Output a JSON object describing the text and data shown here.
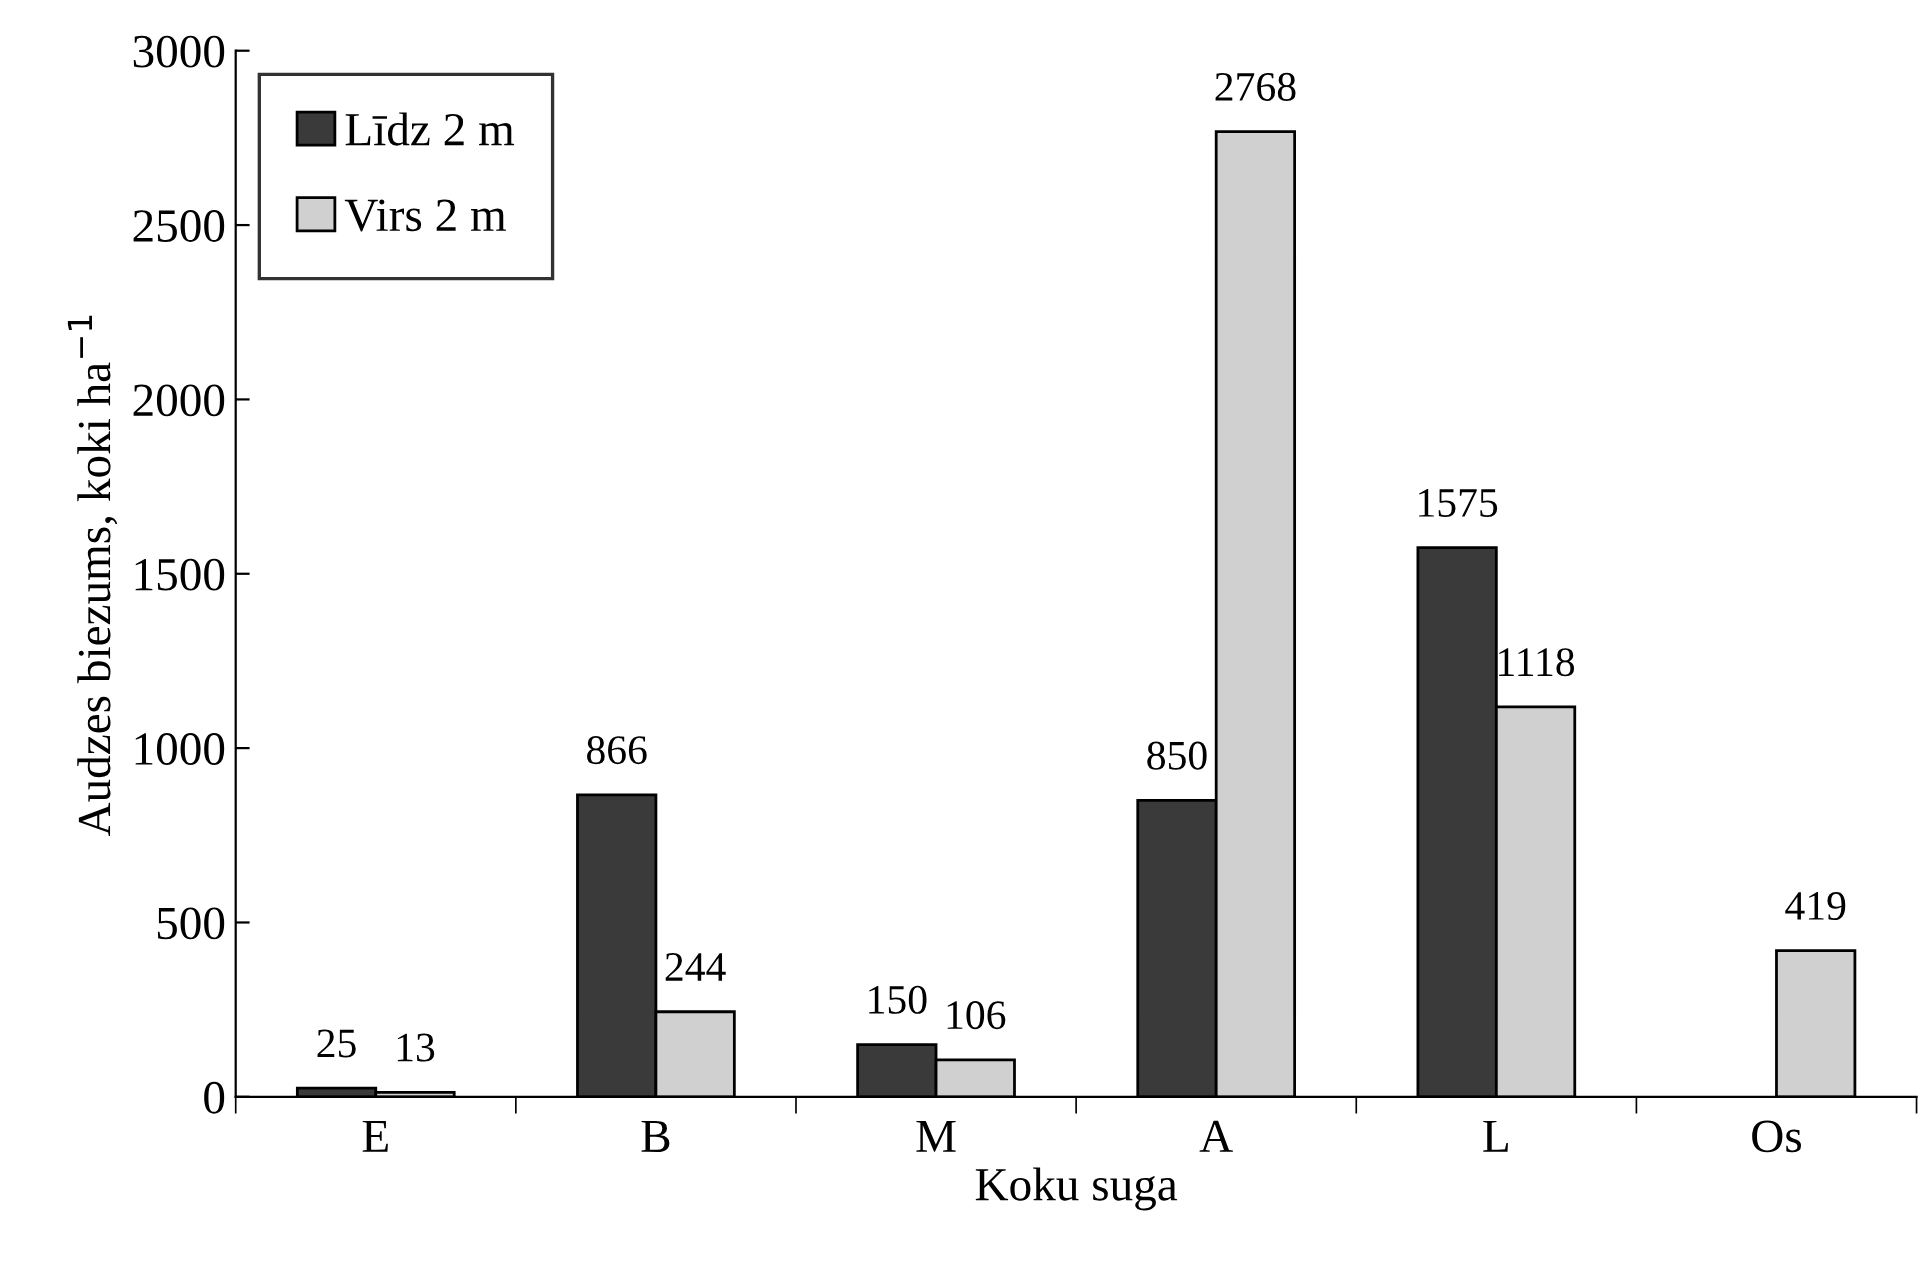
{
  "chart_data": {
    "type": "bar",
    "xlabel": "Koku suga",
    "ylabel": "Audzes biezums, koki ha$^{−1}$",
    "categories": [
      "E",
      "B",
      "M",
      "A",
      "L",
      "Os"
    ],
    "series": [
      {
        "name": "Līdz 2 m",
        "color": "#3a3a3a",
        "values": [
          25,
          866,
          150,
          850,
          1575,
          null
        ]
      },
      {
        "name": "Virs 2 m",
        "color": "#d0d0d0",
        "values": [
          13,
          244,
          106,
          2768,
          1118,
          419
        ]
      }
    ],
    "ylim": [
      0,
      3000
    ],
    "yticks": [
      0,
      500,
      1000,
      1500,
      2000,
      2500,
      3000
    ],
    "grid": false,
    "legend": "top left",
    "data_labels": true
  }
}
